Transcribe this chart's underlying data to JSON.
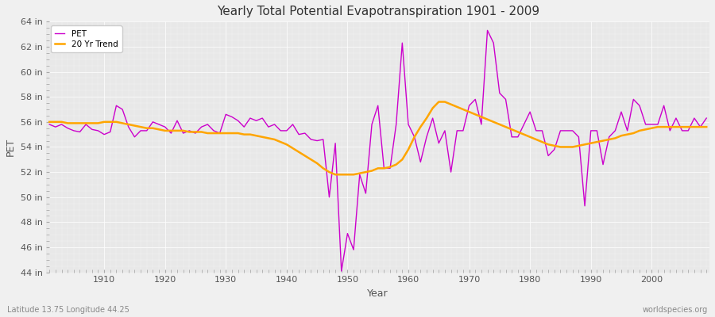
{
  "title": "Yearly Total Potential Evapotranspiration 1901 - 2009",
  "xlabel": "Year",
  "ylabel": "PET",
  "bottom_left_label": "Latitude 13.75 Longitude 44.25",
  "bottom_right_label": "worldspecies.org",
  "fig_bg_color": "#f0f0f0",
  "plot_bg_color": "#e8e8e8",
  "pet_color": "#cc00cc",
  "trend_color": "#ffa500",
  "ylim": [
    44,
    64
  ],
  "ytick_step": 2,
  "years": [
    1901,
    1902,
    1903,
    1904,
    1905,
    1906,
    1907,
    1908,
    1909,
    1910,
    1911,
    1912,
    1913,
    1914,
    1915,
    1916,
    1917,
    1918,
    1919,
    1920,
    1921,
    1922,
    1923,
    1924,
    1925,
    1926,
    1927,
    1928,
    1929,
    1930,
    1931,
    1932,
    1933,
    1934,
    1935,
    1936,
    1937,
    1938,
    1939,
    1940,
    1941,
    1942,
    1943,
    1944,
    1945,
    1946,
    1947,
    1948,
    1949,
    1950,
    1951,
    1952,
    1953,
    1954,
    1955,
    1956,
    1957,
    1958,
    1959,
    1960,
    1961,
    1962,
    1963,
    1964,
    1965,
    1966,
    1967,
    1968,
    1969,
    1970,
    1971,
    1972,
    1973,
    1974,
    1975,
    1976,
    1977,
    1978,
    1979,
    1980,
    1981,
    1982,
    1983,
    1984,
    1985,
    1986,
    1987,
    1988,
    1989,
    1990,
    1991,
    1992,
    1993,
    1994,
    1995,
    1996,
    1997,
    1998,
    1999,
    2000,
    2001,
    2002,
    2003,
    2004,
    2005,
    2006,
    2007,
    2008,
    2009
  ],
  "pet_values": [
    55.8,
    55.6,
    55.8,
    55.5,
    55.3,
    55.2,
    55.8,
    55.4,
    55.3,
    55.0,
    55.2,
    57.3,
    57.0,
    55.6,
    54.8,
    55.3,
    55.3,
    56.0,
    55.8,
    55.6,
    55.1,
    56.1,
    55.1,
    55.3,
    55.1,
    55.6,
    55.8,
    55.3,
    55.1,
    56.6,
    56.4,
    56.1,
    55.6,
    56.3,
    56.1,
    56.3,
    55.6,
    55.8,
    55.3,
    55.3,
    55.8,
    55.0,
    55.1,
    54.6,
    54.5,
    54.6,
    50.0,
    54.3,
    44.1,
    47.1,
    45.8,
    51.8,
    50.3,
    55.8,
    57.3,
    52.3,
    52.3,
    55.8,
    62.3,
    55.8,
    54.8,
    52.8,
    54.8,
    56.3,
    54.3,
    55.3,
    52.0,
    55.3,
    55.3,
    57.3,
    57.8,
    55.8,
    63.3,
    62.3,
    58.3,
    57.8,
    54.8,
    54.8,
    55.8,
    56.8,
    55.3,
    55.3,
    53.3,
    53.8,
    55.3,
    55.3,
    55.3,
    54.8,
    49.3,
    55.3,
    55.3,
    52.6,
    54.8,
    55.3,
    56.8,
    55.3,
    57.8,
    57.3,
    55.8,
    55.8,
    55.8,
    57.3,
    55.3,
    56.3,
    55.3,
    55.3,
    56.3,
    55.6,
    56.3
  ],
  "trend_values": [
    56.0,
    56.0,
    56.0,
    55.9,
    55.9,
    55.9,
    55.9,
    55.9,
    55.9,
    56.0,
    56.0,
    56.0,
    55.9,
    55.8,
    55.7,
    55.6,
    55.5,
    55.5,
    55.4,
    55.3,
    55.3,
    55.3,
    55.3,
    55.2,
    55.2,
    55.2,
    55.1,
    55.1,
    55.1,
    55.1,
    55.1,
    55.1,
    55.0,
    55.0,
    54.9,
    54.8,
    54.7,
    54.6,
    54.4,
    54.2,
    53.9,
    53.6,
    53.3,
    53.0,
    52.7,
    52.3,
    52.0,
    51.8,
    51.8,
    51.8,
    51.8,
    51.9,
    52.0,
    52.1,
    52.3,
    52.3,
    52.4,
    52.6,
    53.0,
    53.8,
    54.8,
    55.6,
    56.3,
    57.1,
    57.6,
    57.6,
    57.4,
    57.2,
    57.0,
    56.8,
    56.6,
    56.4,
    56.2,
    56.0,
    55.8,
    55.6,
    55.4,
    55.2,
    55.0,
    54.8,
    54.6,
    54.4,
    54.2,
    54.1,
    54.0,
    54.0,
    54.0,
    54.1,
    54.2,
    54.3,
    54.4,
    54.5,
    54.6,
    54.7,
    54.9,
    55.0,
    55.1,
    55.3,
    55.4,
    55.5,
    55.6,
    55.6,
    55.6,
    55.6,
    55.6,
    55.6,
    55.6,
    55.6,
    55.6
  ]
}
